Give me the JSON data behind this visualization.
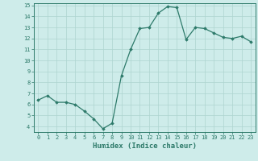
{
  "x": [
    0,
    1,
    2,
    3,
    4,
    5,
    6,
    7,
    8,
    9,
    10,
    11,
    12,
    13,
    14,
    15,
    16,
    17,
    18,
    19,
    20,
    21,
    22,
    23
  ],
  "y": [
    6.4,
    6.8,
    6.2,
    6.2,
    6.0,
    5.4,
    4.7,
    3.8,
    4.3,
    8.6,
    11.0,
    12.9,
    13.0,
    14.3,
    14.9,
    14.8,
    11.9,
    13.0,
    12.9,
    12.5,
    12.1,
    12.0,
    12.2,
    11.7
  ],
  "xlabel": "Humidex (Indice chaleur)",
  "ylim": [
    3.5,
    15.2
  ],
  "xlim": [
    -0.5,
    23.5
  ],
  "yticks": [
    4,
    5,
    6,
    7,
    8,
    9,
    10,
    11,
    12,
    13,
    14,
    15
  ],
  "xticks": [
    0,
    1,
    2,
    3,
    4,
    5,
    6,
    7,
    8,
    9,
    10,
    11,
    12,
    13,
    14,
    15,
    16,
    17,
    18,
    19,
    20,
    21,
    22,
    23
  ],
  "line_color": "#2d7a6a",
  "marker": "D",
  "marker_size": 1.8,
  "bg_color": "#ceecea",
  "grid_color": "#aed4d0",
  "axis_label_color": "#2d7a6a",
  "tick_color": "#2d7a6a",
  "xlabel_fontsize": 6.5,
  "tick_fontsize": 5.0,
  "linewidth": 0.9
}
